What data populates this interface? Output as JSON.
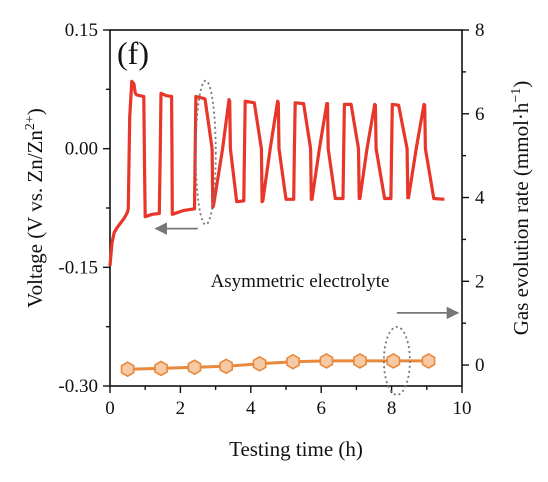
{
  "chart_data": {
    "type": "line",
    "panel_label": "(f)",
    "annotation": "Asymmetric electrolyte",
    "xlabel": "Testing time (h)",
    "ylabel_left_parts": [
      "Voltage (V vs. Zn/Zn",
      "2+",
      ")"
    ],
    "ylabel_right_parts": [
      "Gas evolution rate (mmol·h",
      "−1",
      ")"
    ],
    "xlim": [
      0,
      10
    ],
    "ylim_left": [
      -0.3,
      0.15
    ],
    "ylim_right": [
      -0.5,
      8
    ],
    "x_ticks": [
      "0",
      "2",
      "4",
      "6",
      "8",
      "10"
    ],
    "y_left_ticks": [
      "0.15",
      "0.00",
      "-0.15",
      "-0.30"
    ],
    "y_right_ticks": [
      "8",
      "6",
      "4",
      "2",
      "0"
    ],
    "colors": {
      "voltage": "#e8362a",
      "gas": "#e8893c",
      "gas_marker_fill": "#f7c9a4",
      "annotation": "#777777"
    },
    "series": [
      {
        "axis": "left",
        "x": [
          0.0,
          0.03,
          0.06,
          0.12,
          0.2,
          0.3,
          0.4,
          0.5,
          0.52,
          0.56,
          0.62,
          0.68,
          0.72,
          0.76,
          0.85,
          0.96,
          0.98,
          1.0,
          1.2,
          1.4,
          1.43,
          1.45,
          1.6,
          1.75,
          1.76,
          1.77,
          2.1,
          2.4,
          2.42,
          2.44,
          2.7,
          2.9,
          2.92,
          2.94,
          3.2,
          3.38,
          3.4,
          3.42,
          3.6,
          3.8,
          3.82,
          3.84,
          4.1,
          4.3,
          4.32,
          4.34,
          4.55,
          4.76,
          4.78,
          4.8,
          5.0,
          5.22,
          5.24,
          5.26,
          5.5,
          5.7,
          5.72,
          5.74,
          5.95,
          6.16,
          6.18,
          6.2,
          6.4,
          6.62,
          6.64,
          6.66,
          6.85,
          7.06,
          7.08,
          7.1,
          7.3,
          7.52,
          7.54,
          7.56,
          7.8,
          7.98,
          8.0,
          8.02,
          8.2,
          8.44,
          8.46,
          8.48,
          8.7,
          8.92,
          8.94,
          8.96,
          9.2,
          9.5
        ],
        "y": [
          -0.148,
          -0.132,
          -0.118,
          -0.106,
          -0.1,
          -0.094,
          -0.088,
          -0.08,
          -0.075,
          0.04,
          0.085,
          0.082,
          0.07,
          0.068,
          0.067,
          0.066,
          -0.02,
          -0.086,
          -0.083,
          -0.082,
          0.0,
          0.07,
          0.067,
          0.066,
          -0.01,
          -0.083,
          -0.078,
          -0.076,
          0.0,
          0.066,
          0.063,
          0.0,
          -0.074,
          -0.072,
          0.0,
          0.062,
          0.06,
          0.0,
          -0.067,
          -0.066,
          0.0,
          0.06,
          0.058,
          0.0,
          -0.067,
          -0.066,
          0.0,
          0.06,
          0.058,
          0.0,
          -0.064,
          -0.064,
          0.0,
          0.058,
          0.057,
          0.0,
          -0.064,
          -0.064,
          0.0,
          0.057,
          0.057,
          0.0,
          -0.063,
          -0.063,
          0.0,
          0.056,
          0.056,
          0.0,
          -0.063,
          -0.063,
          0.0,
          0.056,
          0.055,
          0.0,
          -0.063,
          -0.063,
          0.0,
          0.056,
          0.055,
          0.0,
          -0.062,
          -0.062,
          0.0,
          0.056,
          0.055,
          0.0,
          -0.063,
          -0.064
        ]
      },
      {
        "axis": "right",
        "x": [
          0.5,
          1.45,
          2.4,
          3.3,
          4.25,
          5.2,
          6.15,
          7.1,
          8.05,
          9.05
        ],
        "y": [
          -0.1,
          -0.08,
          -0.05,
          -0.03,
          0.03,
          0.08,
          0.1,
          0.1,
          0.1,
          0.1
        ]
      }
    ]
  }
}
